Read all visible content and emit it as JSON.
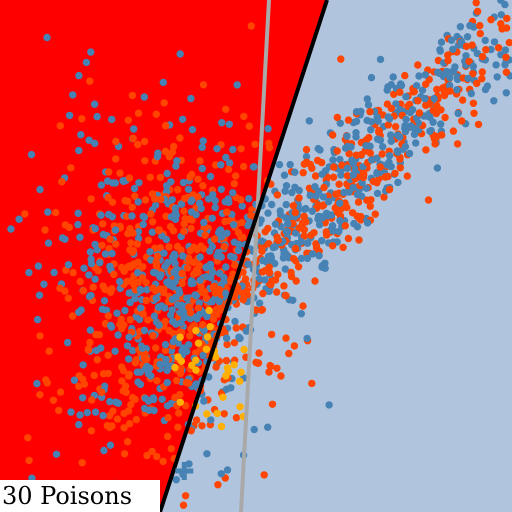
{
  "caption": "30 Poisons",
  "colors": {
    "region_a": "#ff0000",
    "region_b": "#b0c4de",
    "boundary_poisoned": "#000000",
    "boundary_clean": "#a9a9a9",
    "class_blue": "#4682b4",
    "class_orange": "#ff4500",
    "poison_points": "#ffb000",
    "target_marker": "#4682b4"
  },
  "icons": {
    "target_marker": "plus-marker"
  },
  "chart_data": {
    "type": "scatter",
    "grid": false,
    "legend": "none",
    "series_description": [
      {
        "name": "",
        "color": "#4682b4",
        "approx_count": 700
      },
      {
        "name": "",
        "color": "#ff4500",
        "approx_count": 700
      },
      {
        "name": "",
        "color": "#ffb000",
        "approx_count": 30
      }
    ],
    "clusters": [
      {
        "center": [
          0.33,
          0.56
        ],
        "spread": [
          0.12,
          0.17
        ],
        "shape": "round"
      },
      {
        "center": [
          0.68,
          0.35
        ],
        "spread": [
          0.28,
          0.045
        ],
        "shape": "elongated-diagonal"
      }
    ],
    "poison_points": 30,
    "target_point": [
      0.36,
      0.08
    ]
  }
}
